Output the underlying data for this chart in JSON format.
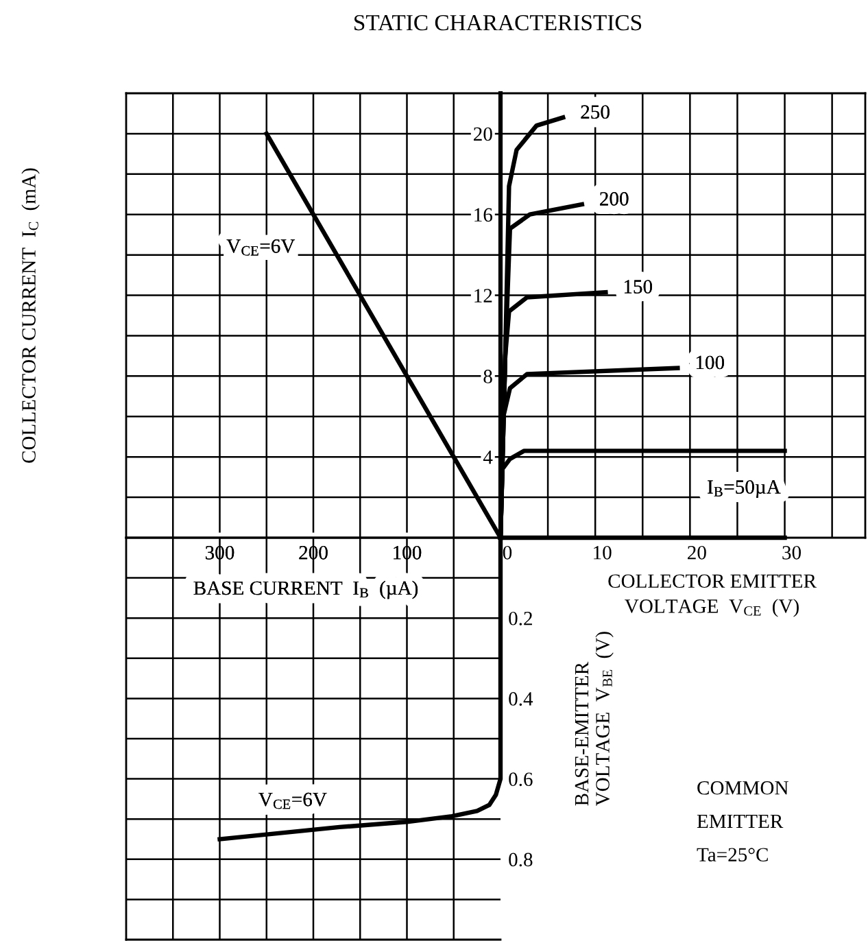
{
  "chart_data": [
    {
      "type": "line",
      "title": "STATIC CHARACTERISTICS",
      "ylabel": "COLLECTOR CURRENT  I$_{C}$  (mA)",
      "xlim": [
        400,
        0
      ],
      "ylim": [
        0,
        22
      ],
      "xticks": [
        {
          "value": 50,
          "label": null
        },
        100,
        {
          "value": 150,
          "label": null
        },
        200,
        {
          "value": 250,
          "label": null
        },
        300,
        {
          "value": 350,
          "label": null
        }
      ],
      "yticks": [
        {
          "value": 2,
          "label": null
        },
        4,
        {
          "value": 6,
          "label": null
        },
        8,
        {
          "value": 10,
          "label": null
        },
        12,
        {
          "value": 14,
          "label": null
        },
        16,
        {
          "value": 18,
          "label": null
        },
        20
      ],
      "grid": true,
      "line_style": "solid",
      "marker": "none",
      "series": [
        {
          "name": "V$_{CE}$=6V",
          "color": "#000000",
          "x": [
            0,
            250
          ],
          "values": [
            0,
            20
          ]
        }
      ]
    },
    {
      "type": "line",
      "xlabel": "COLLECTOR EMITTER\nVOLTAGE  V$_{CE}$  (V)",
      "xlim": [
        0,
        38.5
      ],
      "ylim": [
        0,
        22
      ],
      "xticks": [
        0,
        {
          "value": 5,
          "label": null
        },
        10,
        {
          "value": 15,
          "label": null
        },
        20,
        {
          "value": 25,
          "label": null
        },
        30,
        {
          "value": 35,
          "label": null
        }
      ],
      "yticks": [
        {
          "value": 2,
          "label": null
        },
        {
          "value": 4,
          "label": null
        },
        {
          "value": 6,
          "label": null
        },
        {
          "value": 8,
          "label": null
        },
        {
          "value": 10,
          "label": null
        },
        {
          "value": 12,
          "label": null
        },
        {
          "value": 14,
          "label": null
        },
        {
          "value": 16,
          "label": null
        },
        {
          "value": 18,
          "label": null
        },
        {
          "value": 20,
          "label": null
        }
      ],
      "tick_labels": "x",
      "grid": true,
      "line_style": "solid",
      "marker": "none",
      "series": [
        {
          "name": "250",
          "color": "#000000",
          "x": [
            0,
            0.5,
            0.9,
            1.7,
            3.8,
            6.6
          ],
          "values": [
            0,
            9,
            17.4,
            19.2,
            20.4,
            20.8
          ]
        },
        {
          "name": "200",
          "color": "#000000",
          "x": [
            0,
            0.5,
            1.0,
            3.1,
            8.6
          ],
          "values": [
            0,
            9,
            15.3,
            16.0,
            16.5
          ]
        },
        {
          "name": "150",
          "color": "#000000",
          "x": [
            0,
            0.5,
            0.9,
            2.8,
            11.1
          ],
          "values": [
            0,
            9,
            11.2,
            11.9,
            12.15
          ]
        },
        {
          "name": "100",
          "color": "#000000",
          "x": [
            0,
            0.3,
            1.0,
            2.8,
            18.7
          ],
          "values": [
            0,
            6,
            7.4,
            8.1,
            8.4
          ]
        },
        {
          "name": "I$_{B}$=50µA",
          "color": "#000000",
          "x": [
            0,
            0.2,
            1.0,
            2.5,
            30
          ],
          "values": [
            0,
            3.4,
            3.9,
            4.3,
            4.3
          ]
        },
        {
          "color": "#000000",
          "x": [
            0,
            30
          ],
          "values": [
            0,
            0
          ]
        }
      ],
      "annotations": [
        "COMMON\nEMITTER\nTa=25°C"
      ]
    },
    {
      "type": "line",
      "xlabel": "BASE CURRENT  I$_{B}$  (µA)",
      "ylabel": "BASE-EMITTER\nVOLTAGE  V$_{BE}$  (V)",
      "xlim": [
        400,
        0
      ],
      "ylim": [
        1.0,
        0
      ],
      "xticks": [
        {
          "value": 50,
          "label": null
        },
        {
          "value": 100,
          "label": null
        },
        {
          "value": 150,
          "label": null
        },
        {
          "value": 200,
          "label": null
        },
        {
          "value": 250,
          "label": null
        },
        {
          "value": 300,
          "label": null
        },
        {
          "value": 350,
          "label": null
        }
      ],
      "yticks": [
        {
          "value": 0.1,
          "label": null
        },
        0.2,
        {
          "value": 0.3,
          "label": null
        },
        0.4,
        {
          "value": 0.5,
          "label": null
        },
        0.6,
        {
          "value": 0.7,
          "label": null
        },
        0.8,
        {
          "value": 0.9,
          "label": null
        }
      ],
      "tick_labels": "y",
      "grid": true,
      "line_style": "solid",
      "marker": "none",
      "series": [
        {
          "name": "V$_{CE}$=6V",
          "color": "#000000",
          "x": [
            0,
            0,
            5,
            12,
            25,
            52,
            100,
            172,
            300
          ],
          "values": [
            0,
            0.6,
            0.64,
            0.665,
            0.68,
            0.693,
            0.707,
            0.72,
            0.75
          ]
        }
      ]
    }
  ]
}
